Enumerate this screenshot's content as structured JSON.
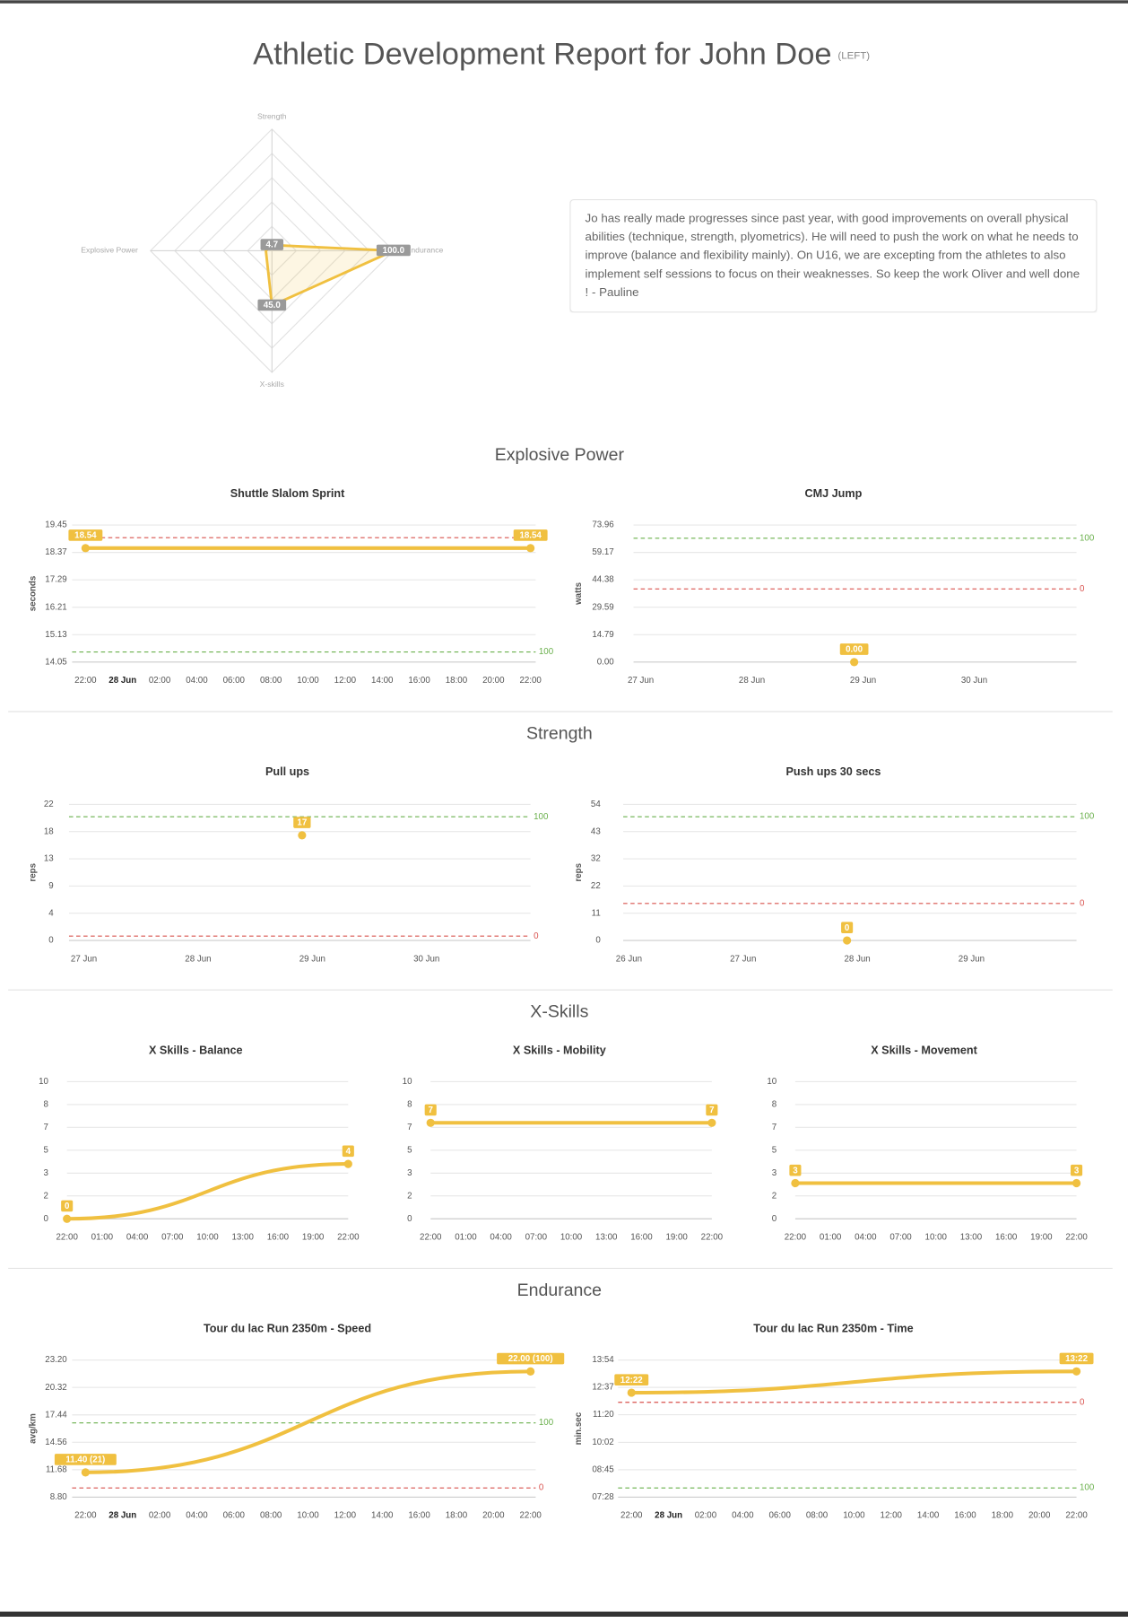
{
  "header": {
    "title": "Athletic Development Report for John Doe",
    "side": "(LEFT)"
  },
  "comment": "Jo has really made progresses since past year, with good improvements on overall physical abilities (technique, strength, plyometrics). He will need to push the work on what he needs to improve (balance and flexibility mainly). On U16, we are excepting from the athletes to also implement self sessions to focus on their weaknesses. So keep the work Oliver and well done ! - Pauline",
  "sections": [
    "Explosive Power",
    "Strength",
    "X-Skills",
    "Endurance"
  ],
  "chart_data": [
    {
      "type": "radar",
      "categories": [
        "Strength",
        "Endurance",
        "X-skills",
        "Explosive Power"
      ],
      "values": [
        4.7,
        100,
        45,
        5
      ],
      "value_labels": [
        "4.7",
        "100.0",
        "45.0",
        null
      ],
      "color": "#f0c040",
      "rlim": [
        0,
        100
      ],
      "rticks": [
        20,
        40,
        60,
        80,
        100
      ]
    },
    {
      "type": "line",
      "title": "Shuttle Slalom Sprint",
      "ylabel": "seconds",
      "color": "#f0c040",
      "x": [
        0,
        24
      ],
      "values": [
        18.54,
        18.54
      ],
      "value_labels": [
        "18.54",
        "18.54"
      ],
      "xlim": [
        0,
        24
      ],
      "xticks": [
        {
          "value": 0,
          "label": "22:00"
        },
        {
          "value": 2,
          "label": "28 Jun"
        },
        {
          "value": 4,
          "label": "02:00"
        },
        {
          "value": 6,
          "label": "04:00"
        },
        {
          "value": 8,
          "label": "06:00"
        },
        {
          "value": 10,
          "label": "08:00"
        },
        {
          "value": 12,
          "label": "10:00"
        },
        {
          "value": 14,
          "label": "12:00"
        },
        {
          "value": 16,
          "label": "14:00"
        },
        {
          "value": 18,
          "label": "16:00"
        },
        {
          "value": 20,
          "label": "18:00"
        },
        {
          "value": 22,
          "label": "20:00"
        },
        {
          "value": 24,
          "label": "22:00"
        }
      ],
      "ylim": [
        14.05,
        19.45
      ],
      "yticks": [
        14.05,
        15.13,
        16.21,
        17.29,
        18.37,
        19.45
      ],
      "reference_lines": [
        {
          "value": 18.95,
          "color": "#d9534f"
        },
        {
          "value": 14.45,
          "label": "100",
          "color": "#6ab04c"
        }
      ]
    },
    {
      "type": "line",
      "title": "CMJ Jump",
      "ylabel": "watts",
      "color": "#f0c040",
      "x": [
        1.92
      ],
      "values": [
        0
      ],
      "value_labels": [
        "0.00"
      ],
      "xlim": [
        -0.065,
        3.92
      ],
      "xticks": [
        {
          "value": 0,
          "label": "27 Jun"
        },
        {
          "value": 1,
          "label": "28 Jun"
        },
        {
          "value": 2,
          "label": "29 Jun"
        },
        {
          "value": 3,
          "label": "30 Jun"
        }
      ],
      "ylim": [
        0,
        73.96
      ],
      "yticks": [
        {
          "value": 0,
          "label": "0.00"
        },
        14.79,
        29.59,
        44.38,
        59.17,
        73.96
      ],
      "reference_lines": [
        {
          "value": 66.8,
          "label": "100",
          "color": "#6ab04c"
        },
        {
          "value": 39.45,
          "label": "0",
          "color": "#d9534f"
        }
      ]
    },
    {
      "type": "line",
      "title": "Pull ups",
      "ylabel": "reps",
      "color": "#f0c040",
      "x": [
        1.91
      ],
      "values": [
        17
      ],
      "xlim": [
        -0.13,
        3.91
      ],
      "xticks": [
        {
          "value": 0,
          "label": "27 Jun"
        },
        {
          "value": 1,
          "label": "28 Jun"
        },
        {
          "value": 2,
          "label": "29 Jun"
        },
        {
          "value": 3,
          "label": "30 Jun"
        }
      ],
      "ylim": [
        0,
        22
      ],
      "yticks": [
        0,
        {
          "value": 4.4,
          "label": "4"
        },
        {
          "value": 8.8,
          "label": "9"
        },
        {
          "value": 13.2,
          "label": "13"
        },
        {
          "value": 17.6,
          "label": "18"
        },
        22
      ],
      "reference_lines": [
        {
          "value": 20,
          "label": "100",
          "color": "#6ab04c"
        },
        {
          "value": 0.7,
          "label": "0",
          "color": "#d9534f"
        }
      ]
    },
    {
      "type": "line",
      "title": "Push ups 30 secs",
      "ylabel": "reps",
      "color": "#f0c040",
      "x": [
        1.91
      ],
      "values": [
        0
      ],
      "xlim": [
        -0.05,
        3.92
      ],
      "xticks": [
        {
          "value": 0,
          "label": "26 Jun"
        },
        {
          "value": 1,
          "label": "27 Jun"
        },
        {
          "value": 2,
          "label": "28 Jun"
        },
        {
          "value": 3,
          "label": "29 Jun"
        }
      ],
      "ylim": [
        0,
        54
      ],
      "yticks": [
        0,
        {
          "value": 10.8,
          "label": "11"
        },
        {
          "value": 21.6,
          "label": "22"
        },
        {
          "value": 32.4,
          "label": "32"
        },
        {
          "value": 43.2,
          "label": "43"
        },
        54
      ],
      "reference_lines": [
        {
          "value": 49.1,
          "label": "100",
          "color": "#6ab04c"
        },
        {
          "value": 14.7,
          "label": "0",
          "color": "#d9534f"
        }
      ]
    },
    {
      "type": "line",
      "title": "X Skills - Balance",
      "color": "#f0c040",
      "x": [
        0,
        24
      ],
      "values": [
        0,
        4
      ],
      "xlim": [
        0,
        24
      ],
      "xticks": [
        {
          "value": 0,
          "label": "22:00"
        },
        {
          "value": 3,
          "label": "01:00"
        },
        {
          "value": 6,
          "label": "04:00"
        },
        {
          "value": 9,
          "label": "07:00"
        },
        {
          "value": 12,
          "label": "10:00"
        },
        {
          "value": 15,
          "label": "13:00"
        },
        {
          "value": 18,
          "label": "16:00"
        },
        {
          "value": 21,
          "label": "19:00"
        },
        {
          "value": 24,
          "label": "22:00"
        }
      ],
      "ylim": [
        0,
        10
      ],
      "yticks": [
        0,
        {
          "value": 1.67,
          "label": "2"
        },
        {
          "value": 3.33,
          "label": "3"
        },
        5,
        {
          "value": 6.67,
          "label": "7"
        },
        {
          "value": 8.33,
          "label": "8"
        },
        10
      ]
    },
    {
      "type": "line",
      "title": "X Skills - Mobility",
      "color": "#f0c040",
      "x": [
        0,
        24
      ],
      "values": [
        7,
        7
      ],
      "xlim": [
        0,
        24
      ],
      "xticks": [
        {
          "value": 0,
          "label": "22:00"
        },
        {
          "value": 3,
          "label": "01:00"
        },
        {
          "value": 6,
          "label": "04:00"
        },
        {
          "value": 9,
          "label": "07:00"
        },
        {
          "value": 12,
          "label": "10:00"
        },
        {
          "value": 15,
          "label": "13:00"
        },
        {
          "value": 18,
          "label": "16:00"
        },
        {
          "value": 21,
          "label": "19:00"
        },
        {
          "value": 24,
          "label": "22:00"
        }
      ],
      "ylim": [
        0,
        10
      ],
      "yticks": [
        0,
        {
          "value": 1.67,
          "label": "2"
        },
        {
          "value": 3.33,
          "label": "3"
        },
        5,
        {
          "value": 6.67,
          "label": "7"
        },
        {
          "value": 8.33,
          "label": "8"
        },
        10
      ]
    },
    {
      "type": "line",
      "title": "X Skills - Movement",
      "color": "#f0c040",
      "x": [
        0,
        24
      ],
      "values": [
        2.6,
        2.6
      ],
      "value_labels": [
        "3",
        "3"
      ],
      "xlim": [
        0,
        24
      ],
      "xticks": [
        {
          "value": 0,
          "label": "22:00"
        },
        {
          "value": 3,
          "label": "01:00"
        },
        {
          "value": 6,
          "label": "04:00"
        },
        {
          "value": 9,
          "label": "07:00"
        },
        {
          "value": 12,
          "label": "10:00"
        },
        {
          "value": 15,
          "label": "13:00"
        },
        {
          "value": 18,
          "label": "16:00"
        },
        {
          "value": 21,
          "label": "19:00"
        },
        {
          "value": 24,
          "label": "22:00"
        }
      ],
      "ylim": [
        0,
        10
      ],
      "yticks": [
        0,
        {
          "value": 1.67,
          "label": "2"
        },
        {
          "value": 3.33,
          "label": "3"
        },
        5,
        {
          "value": 6.67,
          "label": "7"
        },
        {
          "value": 8.33,
          "label": "8"
        },
        10
      ]
    },
    {
      "type": "line",
      "title": "Tour du lac Run 2350m - Speed",
      "ylabel": "avg/km",
      "color": "#f0c040",
      "x": [
        0,
        24
      ],
      "values": [
        11.4,
        22
      ],
      "value_labels": [
        "11.40 (21)",
        "22.00 (100)"
      ],
      "xlim": [
        0,
        24
      ],
      "xticks": [
        {
          "value": 0,
          "label": "22:00"
        },
        {
          "value": 2,
          "label": "28 Jun"
        },
        {
          "value": 4,
          "label": "02:00"
        },
        {
          "value": 6,
          "label": "04:00"
        },
        {
          "value": 8,
          "label": "06:00"
        },
        {
          "value": 10,
          "label": "08:00"
        },
        {
          "value": 12,
          "label": "10:00"
        },
        {
          "value": 14,
          "label": "12:00"
        },
        {
          "value": 16,
          "label": "14:00"
        },
        {
          "value": 18,
          "label": "16:00"
        },
        {
          "value": 20,
          "label": "18:00"
        },
        {
          "value": 22,
          "label": "20:00"
        },
        {
          "value": 24,
          "label": "22:00"
        }
      ],
      "ylim": [
        8.8,
        23.2
      ],
      "yticks": [
        {
          "value": 8.8,
          "label": "8.80"
        },
        11.68,
        14.56,
        17.44,
        20.32,
        {
          "value": 23.2,
          "label": "23.20"
        }
      ],
      "reference_lines": [
        {
          "value": 16.6,
          "label": "100",
          "color": "#6ab04c"
        },
        {
          "value": 9.77,
          "label": "0",
          "color": "#d9534f"
        }
      ]
    },
    {
      "type": "line",
      "title": "Tour du lac Run 2350m - Time",
      "ylabel": "min.sec",
      "color": "#f0c040",
      "x": [
        0,
        24
      ],
      "values": [
        742,
        802
      ],
      "value_labels": [
        "12:22",
        "13:22"
      ],
      "xlim": [
        0,
        24
      ],
      "xticks": [
        {
          "value": 0,
          "label": "22:00"
        },
        {
          "value": 2,
          "label": "28 Jun"
        },
        {
          "value": 4,
          "label": "02:00"
        },
        {
          "value": 6,
          "label": "04:00"
        },
        {
          "value": 8,
          "label": "06:00"
        },
        {
          "value": 10,
          "label": "08:00"
        },
        {
          "value": 12,
          "label": "10:00"
        },
        {
          "value": 14,
          "label": "12:00"
        },
        {
          "value": 16,
          "label": "14:00"
        },
        {
          "value": 18,
          "label": "16:00"
        },
        {
          "value": 20,
          "label": "18:00"
        },
        {
          "value": 22,
          "label": "20:00"
        },
        {
          "value": 24,
          "label": "22:00"
        }
      ],
      "ylim": [
        448,
        834
      ],
      "yticks": [
        {
          "value": 448,
          "label": "07:28"
        },
        {
          "value": 525,
          "label": "08:45"
        },
        {
          "value": 602,
          "label": "10:02"
        },
        {
          "value": 680,
          "label": "11:20"
        },
        {
          "value": 757,
          "label": "12:37"
        },
        {
          "value": 834,
          "label": "13:54"
        }
      ],
      "reference_lines": [
        {
          "value": 715,
          "label": "0",
          "color": "#d9534f"
        },
        {
          "value": 474,
          "label": "100",
          "color": "#6ab04c"
        }
      ]
    }
  ]
}
